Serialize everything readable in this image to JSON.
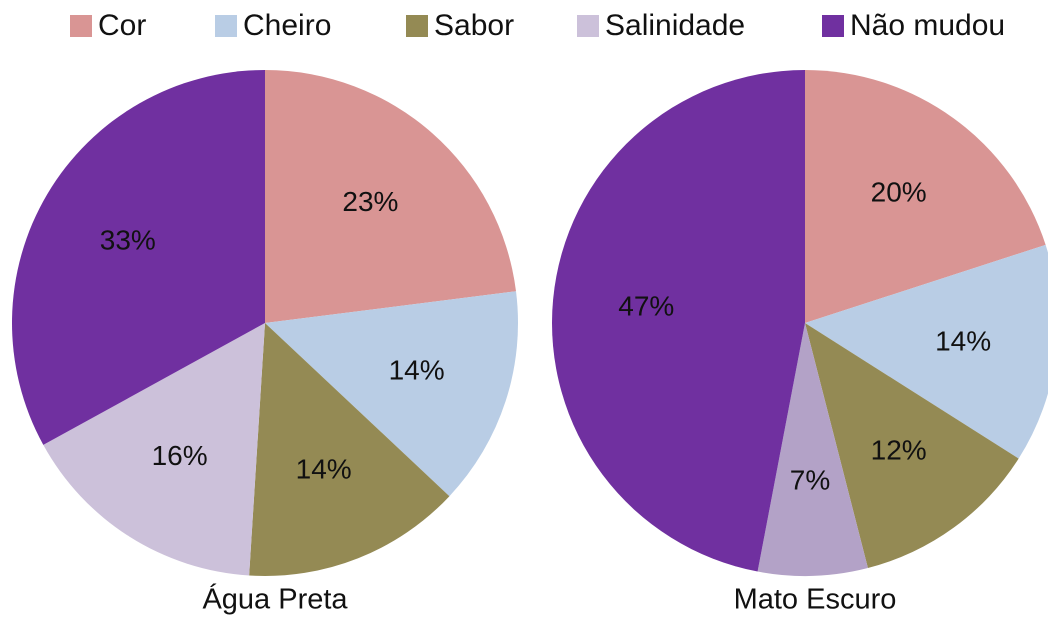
{
  "chart_data": [
    {
      "type": "pie",
      "title": "Água Preta",
      "categories": [
        "Cor",
        "Cheiro",
        "Sabor",
        "Salinidade",
        "Não mudou"
      ],
      "values": [
        23,
        14,
        14,
        16,
        33
      ],
      "value_labels": [
        "23%",
        "14%",
        "14%",
        "16%",
        "33%"
      ],
      "colors": [
        "#d99594",
        "#b9cde5",
        "#948a54",
        "#ccc1da",
        "#7030a0"
      ]
    },
    {
      "type": "pie",
      "title": "Mato Escuro",
      "categories": [
        "Cor",
        "Cheiro",
        "Sabor",
        "Salinidade",
        "Não mudou"
      ],
      "values": [
        20,
        14,
        12,
        7,
        47
      ],
      "value_labels": [
        "20%",
        "14%",
        "12%",
        "7%",
        "47%"
      ],
      "colors": [
        "#d99594",
        "#b9cde5",
        "#948a54",
        "#b3a2c7",
        "#7030a0"
      ]
    }
  ]
}
